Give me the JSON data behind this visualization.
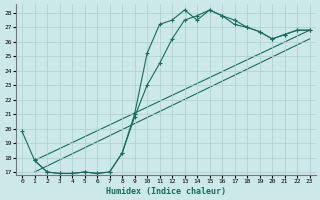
{
  "xlabel": "Humidex (Indice chaleur)",
  "bg_color": "#cce8e8",
  "grid_color": "#aacfcf",
  "line_color": "#1a6b5e",
  "xlim": [
    -0.5,
    23.5
  ],
  "ylim": [
    16.8,
    28.6
  ],
  "yticks": [
    17,
    18,
    19,
    20,
    21,
    22,
    23,
    24,
    25,
    26,
    27,
    28
  ],
  "xticks": [
    0,
    1,
    2,
    3,
    4,
    5,
    6,
    7,
    8,
    9,
    10,
    11,
    12,
    13,
    14,
    15,
    16,
    17,
    18,
    19,
    20,
    21,
    22,
    23
  ],
  "curve1_x": [
    0,
    1,
    2,
    3,
    4,
    5,
    6,
    7,
    8,
    9,
    10,
    11,
    12,
    13,
    14,
    15,
    16,
    17,
    18,
    19,
    20,
    21,
    22,
    23
  ],
  "curve1_y": [
    19.8,
    17.8,
    17.0,
    16.9,
    16.9,
    17.0,
    16.9,
    17.0,
    18.3,
    21.0,
    25.2,
    27.2,
    27.5,
    28.2,
    27.5,
    28.2,
    27.8,
    27.2,
    27.0,
    26.7,
    26.2,
    26.5,
    26.8,
    26.8
  ],
  "curve2_x": [
    1,
    2,
    3,
    4,
    5,
    6,
    7,
    8,
    9,
    10,
    11,
    12,
    13,
    14,
    15,
    16,
    17,
    18,
    19,
    20,
    21,
    22,
    23
  ],
  "curve2_y": [
    17.8,
    17.0,
    16.9,
    16.9,
    17.0,
    16.9,
    17.0,
    18.3,
    20.8,
    23.0,
    24.5,
    26.2,
    27.5,
    27.8,
    28.2,
    27.8,
    27.5,
    27.0,
    26.7,
    26.2,
    26.5,
    26.8,
    26.8
  ],
  "line3_x": [
    1,
    23
  ],
  "line3_y": [
    17.8,
    26.8
  ],
  "line4_x": [
    1,
    23
  ],
  "line4_y": [
    17.0,
    26.2
  ]
}
